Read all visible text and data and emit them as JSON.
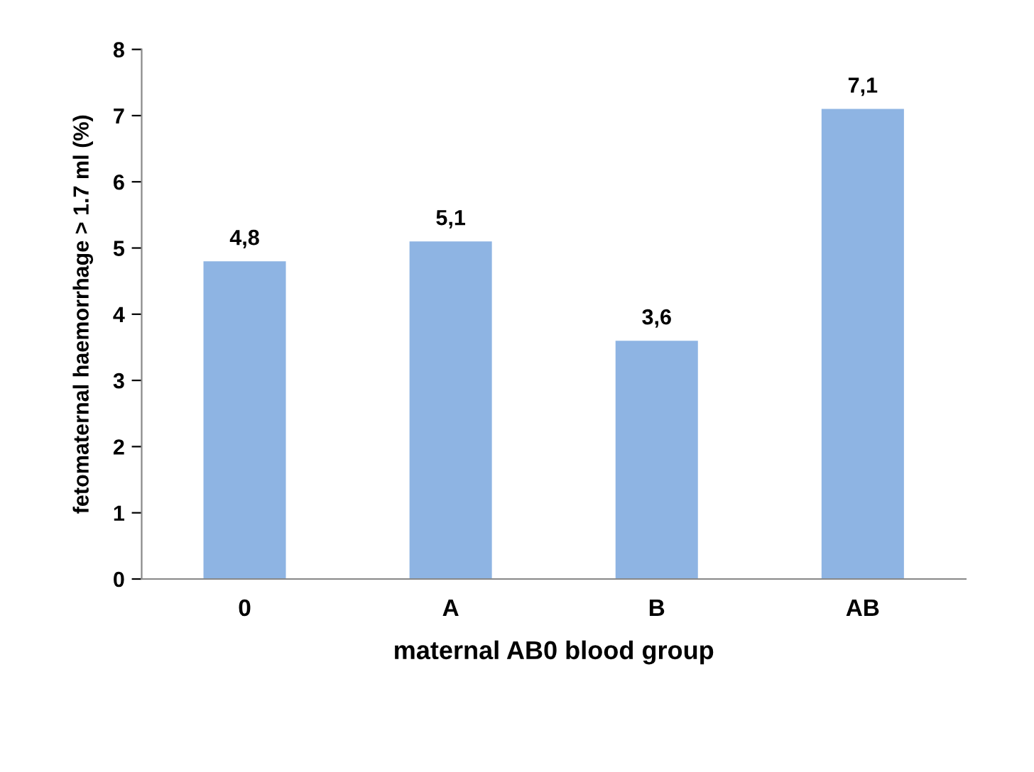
{
  "chart_data": {
    "type": "bar",
    "xlabel": "maternal AB0 blood group",
    "ylabel": "fetomaternal haemorrhage > 1.7 ml (%)",
    "categories": [
      "0",
      "A",
      "B",
      "AB"
    ],
    "values": [
      4.8,
      5.1,
      3.6,
      7.1
    ],
    "value_labels": [
      "4,8",
      "5,1",
      "3,6",
      "7,1"
    ],
    "color": "#8eb4e3",
    "ylim": [
      0,
      8
    ],
    "yticks": [
      0,
      1,
      2,
      3,
      4,
      5,
      6,
      7,
      8
    ],
    "grid": false,
    "legend": false
  }
}
